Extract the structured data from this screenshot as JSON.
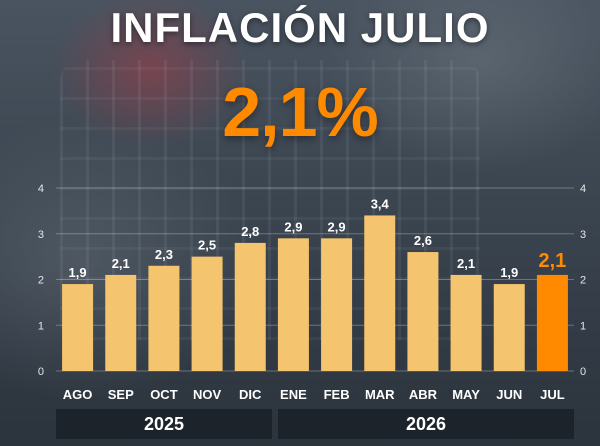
{
  "header": {
    "title": "INFLACIÓN JULIO",
    "headline": "2,1%"
  },
  "colors": {
    "bar": "#f5c46e",
    "highlight": "#ff8a00",
    "title": "#ffffff",
    "label": "#ffffff",
    "year_box": "#1c232b"
  },
  "years": [
    {
      "label": "2025"
    },
    {
      "label": "2026"
    }
  ],
  "chart_data": {
    "type": "bar",
    "categories": [
      "AGO",
      "SEP",
      "OCT",
      "NOV",
      "DIC",
      "ENE",
      "FEB",
      "MAR",
      "ABR",
      "MAY",
      "JUN",
      "JUL"
    ],
    "values": [
      1.9,
      2.1,
      2.3,
      2.5,
      2.8,
      2.9,
      2.9,
      3.4,
      2.6,
      2.1,
      1.9,
      2.1
    ],
    "value_labels": [
      "1,9",
      "2,1",
      "2,3",
      "2,5",
      "2,8",
      "2,9",
      "2,9",
      "3,4",
      "2,6",
      "2,1",
      "1,9",
      "2,1"
    ],
    "highlight_index": 11,
    "ylim": [
      0,
      4
    ],
    "yticks": [
      "0",
      "1",
      "2",
      "3",
      "4"
    ],
    "grid": true,
    "title": "",
    "xlabel": "",
    "ylabel": ""
  }
}
